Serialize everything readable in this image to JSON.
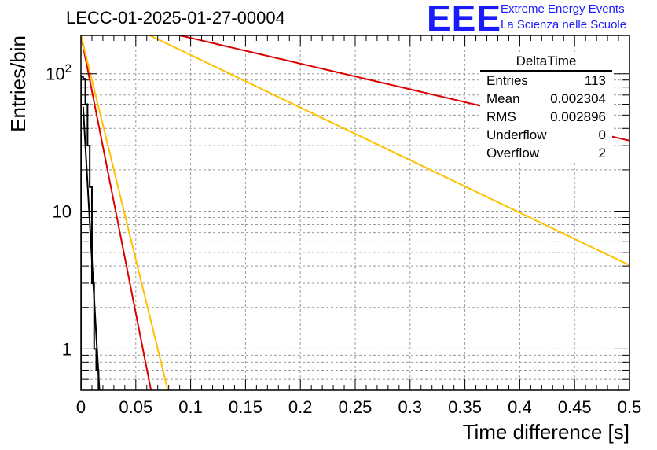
{
  "title": "LECC-01-2025-01-27-00004",
  "logo": {
    "text": "EEE",
    "line1": "Extreme Energy Events",
    "line2": "La Scienza nelle Scuole",
    "color": "#1a1aff"
  },
  "stats": {
    "name": "DeltaTime",
    "rows": [
      {
        "label": "Entries",
        "value": "113"
      },
      {
        "label": "Mean",
        "value": "0.002304"
      },
      {
        "label": "RMS",
        "value": "0.002896"
      },
      {
        "label": "Underflow",
        "value": "0"
      },
      {
        "label": "Overflow",
        "value": "2"
      }
    ]
  },
  "chart_data": {
    "type": "line",
    "title": "LECC-01-2025-01-27-00004",
    "xlabel": "Time difference [s]",
    "ylabel": "Entries/bin",
    "xlim": [
      0,
      0.5
    ],
    "ylim": [
      0.5,
      190
    ],
    "yscale": "log",
    "grid": true,
    "xticks": [
      0,
      0.05,
      0.1,
      0.15,
      0.2,
      0.25,
      0.3,
      0.35,
      0.4,
      0.45,
      0.5
    ],
    "xtick_labels": [
      "0",
      "0.05",
      "0.1",
      "0.15",
      "0.2",
      "0.25",
      "0.3",
      "0.35",
      "0.4",
      "0.45",
      "0.5"
    ],
    "ytick_labels": [
      "1",
      "10",
      "10^2"
    ],
    "series": [
      {
        "name": "DeltaTime histogram",
        "kind": "histogram",
        "color": "#000000",
        "bin_edges": [
          0,
          0.002,
          0.004,
          0.006,
          0.008,
          0.01,
          0.012,
          0.014,
          0.016,
          0.018
        ],
        "values": [
          95,
          92,
          60,
          30,
          15,
          3,
          1,
          0.7,
          0.5
        ]
      },
      {
        "name": "fit",
        "kind": "exponential",
        "color": "#000000",
        "x_range": [
          0.002,
          0.0175
        ],
        "a": 109,
        "rate": 320
      },
      {
        "name": "red steep line",
        "kind": "exponential",
        "color": "#dd0000",
        "x_range": [
          0,
          0.5
        ],
        "a": 190,
        "rate": 93
      },
      {
        "name": "yellow steep line",
        "kind": "exponential",
        "color": "#ffc000",
        "x_range": [
          0,
          0.5
        ],
        "a": 190,
        "rate": 75
      },
      {
        "name": "red shallow line",
        "kind": "exponential",
        "color": "#dd0000",
        "x_range": [
          0,
          0.5
        ],
        "a": 280,
        "rate": 4.3
      },
      {
        "name": "yellow shallow line",
        "kind": "exponential",
        "color": "#ffc000",
        "x_range": [
          0,
          0.5
        ],
        "a": 330,
        "rate": 8.8
      }
    ]
  }
}
